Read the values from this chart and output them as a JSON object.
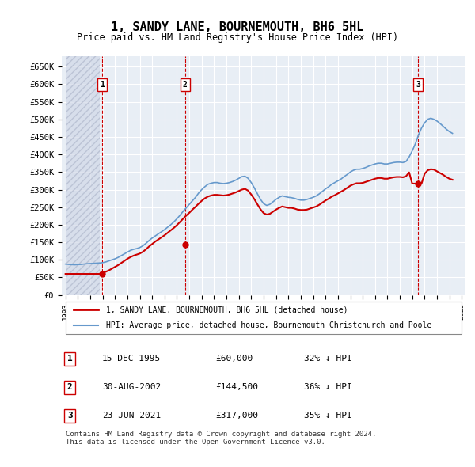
{
  "title": "1, SANDY LANE, BOURNEMOUTH, BH6 5HL",
  "subtitle": "Price paid vs. HM Land Registry's House Price Index (HPI)",
  "hpi_color": "#6699cc",
  "price_color": "#cc0000",
  "dashed_color": "#cc0000",
  "background_color": "#ffffff",
  "plot_bg_color": "#e8eef5",
  "hatch_color": "#c0c8d8",
  "grid_color": "#ffffff",
  "ylabel": "",
  "xlabel": "",
  "ylim": [
    0,
    680000
  ],
  "yticks": [
    0,
    50000,
    100000,
    150000,
    200000,
    250000,
    300000,
    350000,
    400000,
    450000,
    500000,
    550000,
    600000,
    650000
  ],
  "sale_dates": [
    "1995-12-15",
    "2002-08-30",
    "2021-06-23"
  ],
  "sale_prices": [
    60000,
    144500,
    317000
  ],
  "sale_labels": [
    "1",
    "2",
    "3"
  ],
  "table_rows": [
    [
      "1",
      "15-DEC-1995",
      "£60,000",
      "32% ↓ HPI"
    ],
    [
      "2",
      "30-AUG-2002",
      "£144,500",
      "36% ↓ HPI"
    ],
    [
      "3",
      "23-JUN-2021",
      "£317,000",
      "35% ↓ HPI"
    ]
  ],
  "legend_line1": "1, SANDY LANE, BOURNEMOUTH, BH6 5HL (detached house)",
  "legend_line2": "HPI: Average price, detached house, Bournemouth Christchurch and Poole",
  "footnote": "Contains HM Land Registry data © Crown copyright and database right 2024.\nThis data is licensed under the Open Government Licence v3.0.",
  "hpi_data": {
    "dates": [
      1993.0,
      1993.25,
      1993.5,
      1993.75,
      1994.0,
      1994.25,
      1994.5,
      1994.75,
      1995.0,
      1995.25,
      1995.5,
      1995.75,
      1996.0,
      1996.25,
      1996.5,
      1996.75,
      1997.0,
      1997.25,
      1997.5,
      1997.75,
      1998.0,
      1998.25,
      1998.5,
      1998.75,
      1999.0,
      1999.25,
      1999.5,
      1999.75,
      2000.0,
      2000.25,
      2000.5,
      2000.75,
      2001.0,
      2001.25,
      2001.5,
      2001.75,
      2002.0,
      2002.25,
      2002.5,
      2002.75,
      2003.0,
      2003.25,
      2003.5,
      2003.75,
      2004.0,
      2004.25,
      2004.5,
      2004.75,
      2005.0,
      2005.25,
      2005.5,
      2005.75,
      2006.0,
      2006.25,
      2006.5,
      2006.75,
      2007.0,
      2007.25,
      2007.5,
      2007.75,
      2008.0,
      2008.25,
      2008.5,
      2008.75,
      2009.0,
      2009.25,
      2009.5,
      2009.75,
      2010.0,
      2010.25,
      2010.5,
      2010.75,
      2011.0,
      2011.25,
      2011.5,
      2011.75,
      2012.0,
      2012.25,
      2012.5,
      2012.75,
      2013.0,
      2013.25,
      2013.5,
      2013.75,
      2014.0,
      2014.25,
      2014.5,
      2014.75,
      2015.0,
      2015.25,
      2015.5,
      2015.75,
      2016.0,
      2016.25,
      2016.5,
      2016.75,
      2017.0,
      2017.25,
      2017.5,
      2017.75,
      2018.0,
      2018.25,
      2018.5,
      2018.75,
      2019.0,
      2019.25,
      2019.5,
      2019.75,
      2020.0,
      2020.25,
      2020.5,
      2020.75,
      2021.0,
      2021.25,
      2021.5,
      2021.75,
      2022.0,
      2022.25,
      2022.5,
      2022.75,
      2023.0,
      2023.25,
      2023.5,
      2023.75,
      2024.0,
      2024.25
    ],
    "values": [
      88000,
      87000,
      86500,
      86000,
      86500,
      87000,
      88000,
      89000,
      89500,
      90000,
      90500,
      91000,
      92000,
      94000,
      97000,
      100000,
      103000,
      107000,
      112000,
      117000,
      122000,
      127000,
      130000,
      132000,
      135000,
      140000,
      147000,
      155000,
      162000,
      168000,
      174000,
      180000,
      186000,
      193000,
      200000,
      208000,
      217000,
      227000,
      238000,
      248000,
      258000,
      268000,
      278000,
      290000,
      300000,
      308000,
      315000,
      318000,
      320000,
      320000,
      318000,
      317000,
      318000,
      320000,
      323000,
      327000,
      332000,
      337000,
      338000,
      332000,
      320000,
      305000,
      288000,
      272000,
      260000,
      255000,
      258000,
      265000,
      272000,
      278000,
      282000,
      280000,
      278000,
      277000,
      275000,
      272000,
      270000,
      270000,
      272000,
      275000,
      278000,
      282000,
      288000,
      295000,
      302000,
      308000,
      315000,
      320000,
      325000,
      330000,
      337000,
      343000,
      350000,
      355000,
      358000,
      358000,
      360000,
      363000,
      367000,
      370000,
      373000,
      375000,
      375000,
      373000,
      373000,
      375000,
      377000,
      378000,
      378000,
      377000,
      380000,
      393000,
      410000,
      430000,
      455000,
      475000,
      490000,
      500000,
      503000,
      500000,
      495000,
      488000,
      480000,
      472000,
      465000,
      460000
    ],
    "price_line": [
      60000,
      60000,
      60000,
      60000,
      60000,
      60000,
      60000,
      60000,
      60000,
      60000,
      60000,
      60000,
      63000,
      66000,
      70000,
      75000,
      80000,
      85000,
      91000,
      97000,
      103000,
      108000,
      112000,
      115000,
      118000,
      123000,
      130000,
      138000,
      145000,
      152000,
      158000,
      164000,
      170000,
      177000,
      184000,
      191000,
      199000,
      208000,
      217000,
      226000,
      234000,
      243000,
      251000,
      260000,
      268000,
      275000,
      280000,
      283000,
      285000,
      285000,
      284000,
      283000,
      284000,
      286000,
      289000,
      292000,
      296000,
      300000,
      302000,
      297000,
      286000,
      273000,
      258000,
      244000,
      233000,
      229000,
      231000,
      237000,
      243000,
      248000,
      252000,
      250000,
      248000,
      248000,
      246000,
      243000,
      242000,
      242000,
      243000,
      246000,
      249000,
      252000,
      257000,
      263000,
      269000,
      274000,
      280000,
      284000,
      289000,
      294000,
      299000,
      305000,
      311000,
      315000,
      318000,
      318000,
      319000,
      322000,
      325000,
      328000,
      331000,
      333000,
      333000,
      331000,
      331000,
      333000,
      335000,
      336000,
      336000,
      335000,
      338000,
      349000,
      317000,
      317000,
      317000,
      317000,
      345000,
      355000,
      358000,
      357000,
      352000,
      347000,
      342000,
      336000,
      331000,
      328000
    ]
  }
}
